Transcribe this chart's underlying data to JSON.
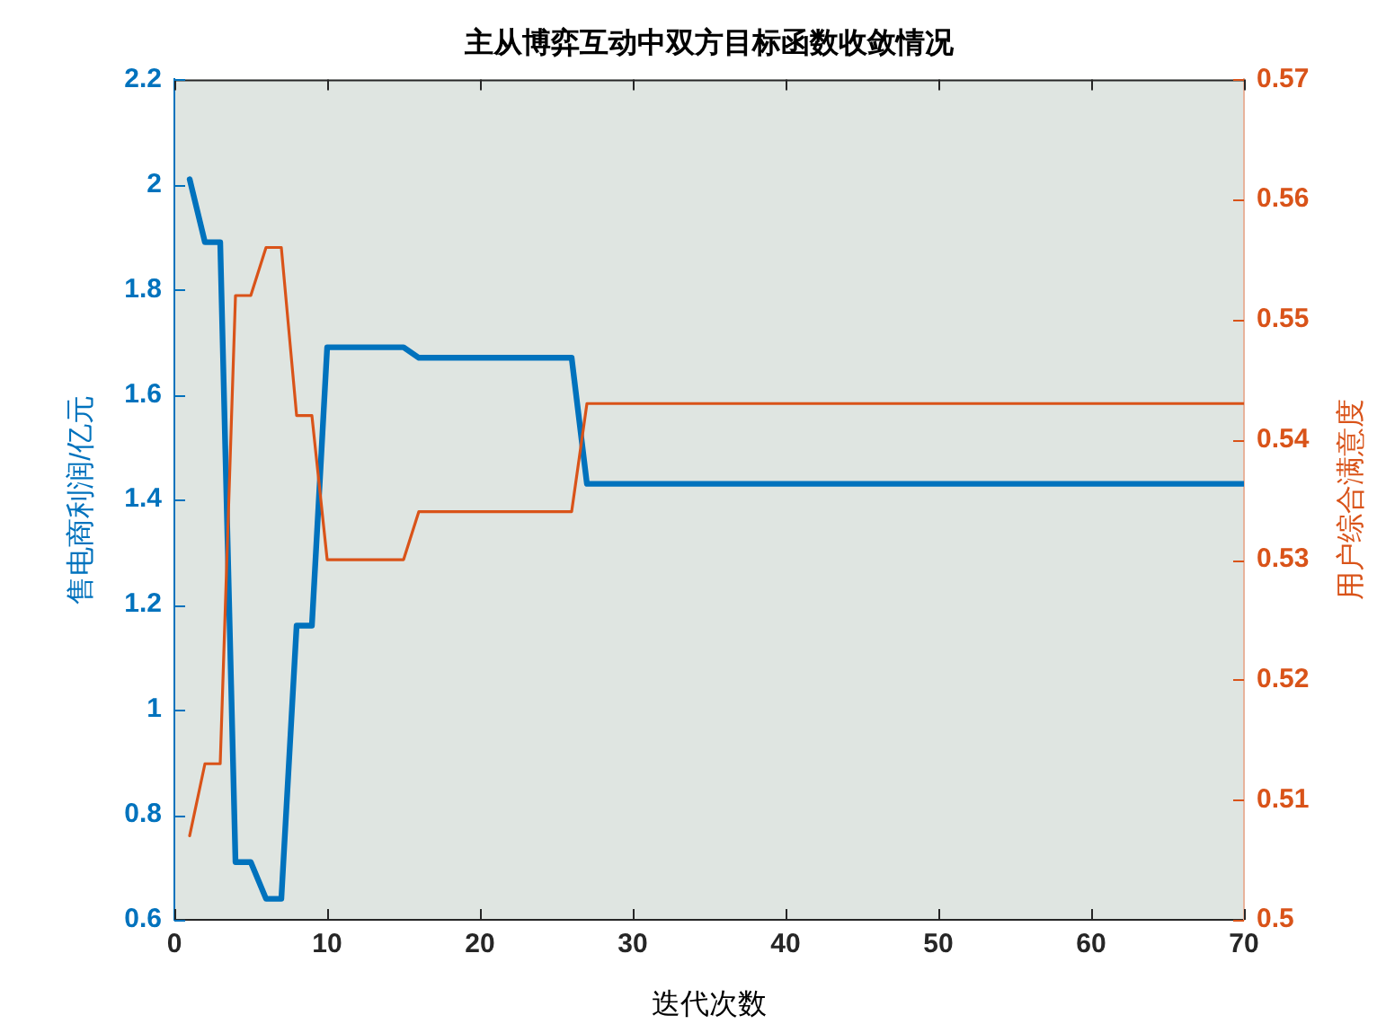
{
  "chart_data": {
    "type": "line",
    "title": "主从博弈互动中双方目标函数收敛情况",
    "xlabel": "迭代次数",
    "ylabel": "售电商利润/亿元",
    "y2label": "用户综合满意度",
    "x": [
      1,
      2,
      3,
      4,
      5,
      6,
      7,
      8,
      9,
      10,
      11,
      12,
      13,
      14,
      15,
      16,
      17,
      18,
      19,
      20,
      21,
      22,
      23,
      24,
      25,
      26,
      27,
      28,
      29,
      30,
      31,
      32,
      33,
      34,
      35,
      36,
      37,
      38,
      39,
      40,
      41,
      42,
      43,
      44,
      45,
      46,
      47,
      48,
      49,
      50,
      51,
      52,
      53,
      54,
      55,
      56,
      57,
      58,
      59,
      60,
      61,
      62,
      63,
      64,
      65,
      66,
      67,
      68,
      69,
      70
    ],
    "series": [
      {
        "color": "#0072bd",
        "axis": "y",
        "values": [
          2.01,
          1.89,
          1.89,
          0.71,
          0.71,
          0.64,
          0.64,
          1.16,
          1.16,
          1.69,
          1.69,
          1.69,
          1.69,
          1.69,
          1.69,
          1.67,
          1.67,
          1.67,
          1.67,
          1.67,
          1.67,
          1.67,
          1.67,
          1.67,
          1.67,
          1.67,
          1.43,
          1.43,
          1.43,
          1.43,
          1.43,
          1.43,
          1.43,
          1.43,
          1.43,
          1.43,
          1.43,
          1.43,
          1.43,
          1.43,
          1.43,
          1.43,
          1.43,
          1.43,
          1.43,
          1.43,
          1.43,
          1.43,
          1.43,
          1.43,
          1.43,
          1.43,
          1.43,
          1.43,
          1.43,
          1.43,
          1.43,
          1.43,
          1.43,
          1.43,
          1.43,
          1.43,
          1.43,
          1.43,
          1.43,
          1.43,
          1.43,
          1.43,
          1.43,
          1.43
        ]
      },
      {
        "color": "#d95319",
        "axis": "y2",
        "values": [
          0.507,
          0.513,
          0.513,
          0.552,
          0.552,
          0.556,
          0.556,
          0.542,
          0.542,
          0.53,
          0.53,
          0.53,
          0.53,
          0.53,
          0.53,
          0.534,
          0.534,
          0.534,
          0.534,
          0.534,
          0.534,
          0.534,
          0.534,
          0.534,
          0.534,
          0.534,
          0.543,
          0.543,
          0.543,
          0.543,
          0.543,
          0.543,
          0.543,
          0.543,
          0.543,
          0.543,
          0.543,
          0.543,
          0.543,
          0.543,
          0.543,
          0.543,
          0.543,
          0.543,
          0.543,
          0.543,
          0.543,
          0.543,
          0.543,
          0.543,
          0.543,
          0.543,
          0.543,
          0.543,
          0.543,
          0.543,
          0.543,
          0.543,
          0.543,
          0.543,
          0.543,
          0.543,
          0.543,
          0.543,
          0.543,
          0.543,
          0.543,
          0.543,
          0.543,
          0.543
        ]
      }
    ],
    "xlim": [
      0,
      70
    ],
    "xticks": [
      0,
      10,
      20,
      30,
      40,
      50,
      60,
      70
    ],
    "ylim": [
      0.6,
      2.2
    ],
    "yticks": [
      0.6,
      0.8,
      1,
      1.2,
      1.4,
      1.6,
      1.8,
      2,
      2.2
    ],
    "y2lim": [
      0.5,
      0.57
    ],
    "y2ticks": [
      0.5,
      0.51,
      0.52,
      0.53,
      0.54,
      0.55,
      0.56,
      0.57
    ],
    "grid": false,
    "legend": false,
    "marker": "none"
  }
}
